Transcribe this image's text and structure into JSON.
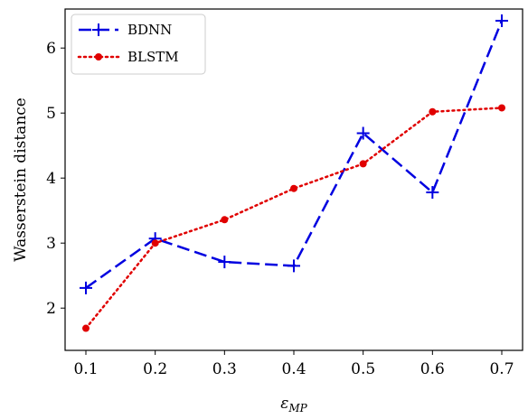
{
  "chart_data": {
    "type": "line",
    "x": [
      0.1,
      0.2,
      0.3,
      0.4,
      0.5,
      0.6,
      0.7
    ],
    "xlabel": "ε",
    "xlabel_sub": "MP",
    "ylabel": "Wasserstein distance",
    "xlim": [
      0.07,
      0.73
    ],
    "ylim": [
      1.35,
      6.6
    ],
    "xticks": [
      "0.1",
      "0.2",
      "0.3",
      "0.4",
      "0.5",
      "0.6",
      "0.7"
    ],
    "yticks": [
      "2",
      "3",
      "4",
      "5",
      "6"
    ],
    "grid": false,
    "legend_position": "upper-left",
    "series": [
      {
        "name": "BDNN",
        "color": "#0000e0",
        "line_style": "dashed",
        "marker": "plus",
        "values": [
          2.31,
          3.07,
          2.71,
          2.65,
          4.69,
          3.78,
          6.42
        ]
      },
      {
        "name": "BLSTM",
        "color": "#e00000",
        "line_style": "dotted",
        "marker": "circle",
        "values": [
          1.69,
          3.0,
          3.36,
          3.84,
          4.22,
          5.02,
          5.08
        ]
      }
    ]
  }
}
